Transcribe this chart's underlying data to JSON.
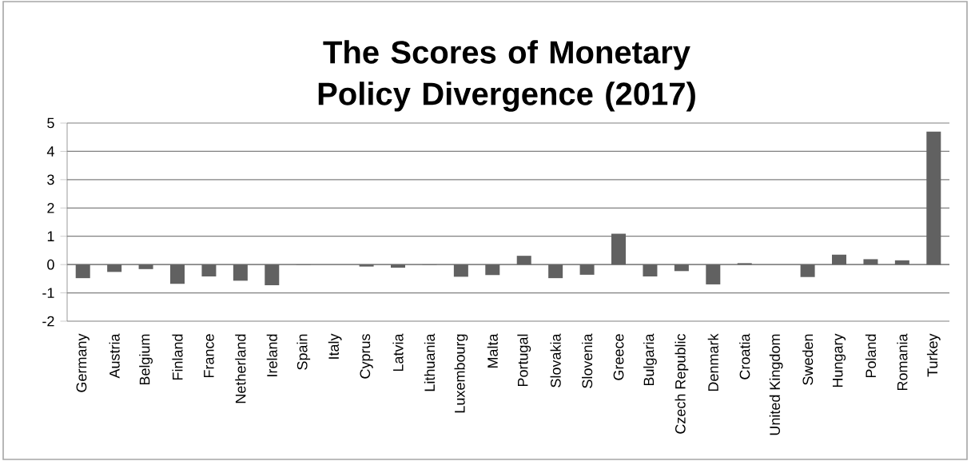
{
  "chart_data": {
    "type": "bar",
    "title": "The Scores of Monetary Policy Divergence (2017)",
    "categories": [
      "Germany",
      "Austria",
      "Belgium",
      "Finland",
      "France",
      "Netherland",
      "Ireland",
      "Spain",
      "Italy",
      "Cyprus",
      "Latvia",
      "Lithuania",
      "Luxembourg",
      "Malta",
      "Portugal",
      "Slovakia",
      "Slovenia",
      "Greece",
      "Bulgaria",
      "Czech Republic",
      "Denmark",
      "Croatia",
      "United Kingdom",
      "Sweden",
      "Hungary",
      "Poland",
      "Romania",
      "Turkey"
    ],
    "values": [
      -0.48,
      -0.26,
      -0.16,
      -0.68,
      -0.42,
      -0.57,
      -0.73,
      -0.01,
      0,
      -0.07,
      -0.11,
      -0.01,
      -0.43,
      -0.37,
      0.31,
      -0.48,
      -0.36,
      1.09,
      -0.42,
      -0.23,
      -0.7,
      0.05,
      0,
      -0.44,
      0.35,
      0.19,
      0.15,
      4.7
    ],
    "color": "#616161",
    "ylim": [
      -2,
      5
    ],
    "yticks": [
      -2,
      -1,
      0,
      1,
      2,
      3,
      4,
      5
    ],
    "grid": "y"
  }
}
